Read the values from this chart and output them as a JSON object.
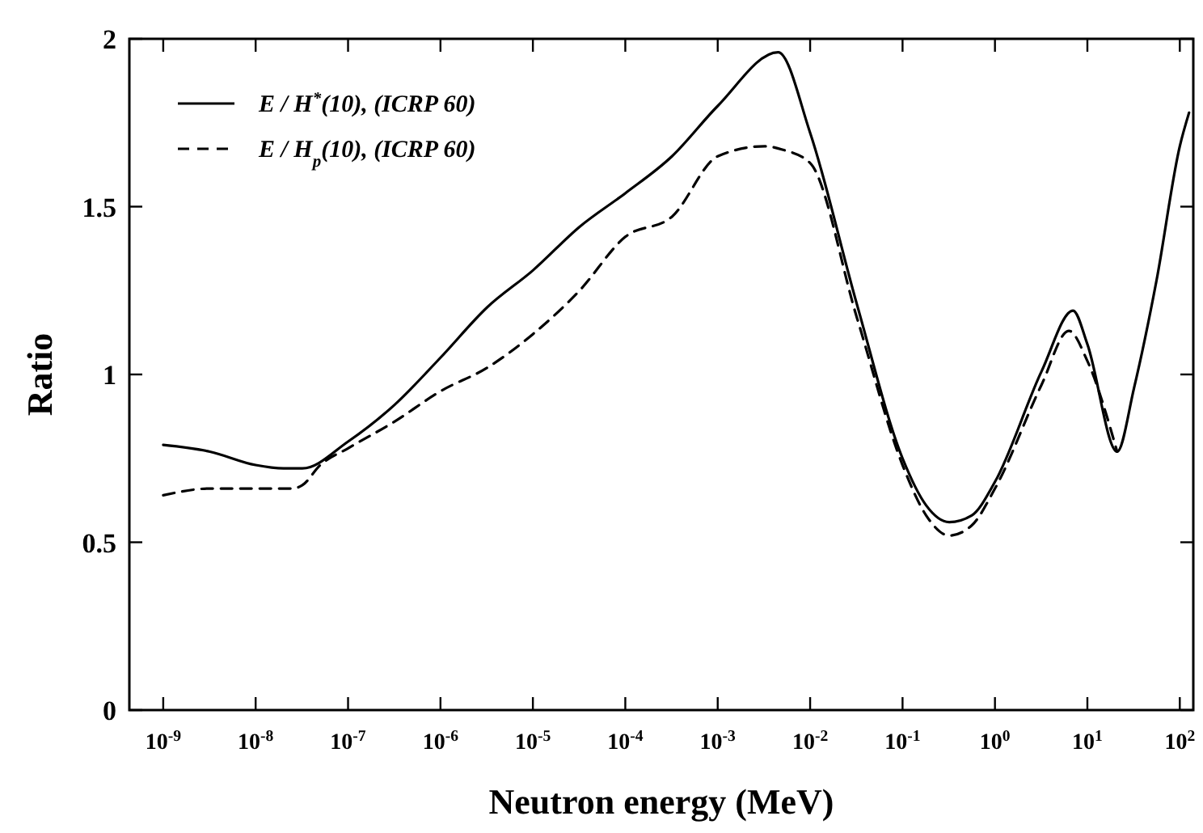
{
  "chart_data": {
    "type": "line",
    "xlabel": "Neutron energy (MeV)",
    "ylabel": "Ratio",
    "log": "x",
    "xlim": [
      4.3e-10,
      140
    ],
    "ylim": [
      0,
      2
    ],
    "xticks": [
      {
        "value": 1e-09,
        "label": "10$^{-9}$"
      },
      {
        "value": 1e-08,
        "label": "10$^{-8}$"
      },
      {
        "value": 1e-07,
        "label": "10$^{-7}$"
      },
      {
        "value": 1e-06,
        "label": "10$^{-6}$"
      },
      {
        "value": 1e-05,
        "label": "10$^{-5}$"
      },
      {
        "value": 0.0001,
        "label": "10$^{-4}$"
      },
      {
        "value": 0.001,
        "label": "10$^{-3}$"
      },
      {
        "value": 0.01,
        "label": "10$^{-2}$"
      },
      {
        "value": 0.1,
        "label": "10$^{-1}$"
      },
      {
        "value": 1,
        "label": "10$^{0}$"
      },
      {
        "value": 10,
        "label": "10$^{1}$"
      },
      {
        "value": 100,
        "label": "10$^{2}$"
      }
    ],
    "yticks": [
      0,
      0.5,
      1,
      1.5,
      2
    ],
    "grid": false,
    "legend": "top left",
    "marker": "none",
    "series": [
      {
        "name": "E / H$^{*}$(10), (ICRP  60)",
        "color": "#000000",
        "line_style": "solid",
        "x": [
          1e-09,
          3.2e-09,
          1e-08,
          2e-08,
          3.2e-08,
          1e-07,
          3.2e-07,
          1e-06,
          3.2e-06,
          1e-05,
          3.2e-05,
          0.0001,
          0.00032,
          0.001,
          0.0045,
          0.01,
          0.032,
          0.1,
          0.18,
          0.32,
          0.56,
          1,
          3.2,
          7,
          10,
          21,
          32,
          56,
          100,
          126
        ],
        "values": [
          0.79,
          0.77,
          0.73,
          0.72,
          0.72,
          0.8,
          0.91,
          1.05,
          1.2,
          1.31,
          1.44,
          1.54,
          1.65,
          1.8,
          1.96,
          1.72,
          1.21,
          0.75,
          0.61,
          0.56,
          0.58,
          0.68,
          1.01,
          1.19,
          1.09,
          0.77,
          0.96,
          1.28,
          1.68,
          1.78
        ]
      },
      {
        "name": "E / H$_{p}$(10), (ICRP  60)",
        "color": "#000000",
        "line_style": "dashed",
        "x": [
          1e-09,
          3.2e-09,
          1e-08,
          2.5e-08,
          3.2e-08,
          5e-08,
          1e-07,
          3.2e-07,
          1e-06,
          3.2e-06,
          1e-05,
          3.2e-05,
          0.0001,
          0.00032,
          0.001,
          0.0032,
          0.005,
          0.01,
          0.032,
          0.1,
          0.18,
          0.32,
          0.56,
          1,
          3.2,
          6.3,
          10,
          21
        ],
        "values": [
          0.64,
          0.66,
          0.66,
          0.66,
          0.67,
          0.73,
          0.78,
          0.86,
          0.95,
          1.02,
          1.12,
          1.25,
          1.41,
          1.47,
          1.65,
          1.68,
          1.67,
          1.63,
          1.17,
          0.73,
          0.58,
          0.52,
          0.55,
          0.66,
          0.97,
          1.13,
          1.04,
          0.77
        ]
      }
    ]
  }
}
